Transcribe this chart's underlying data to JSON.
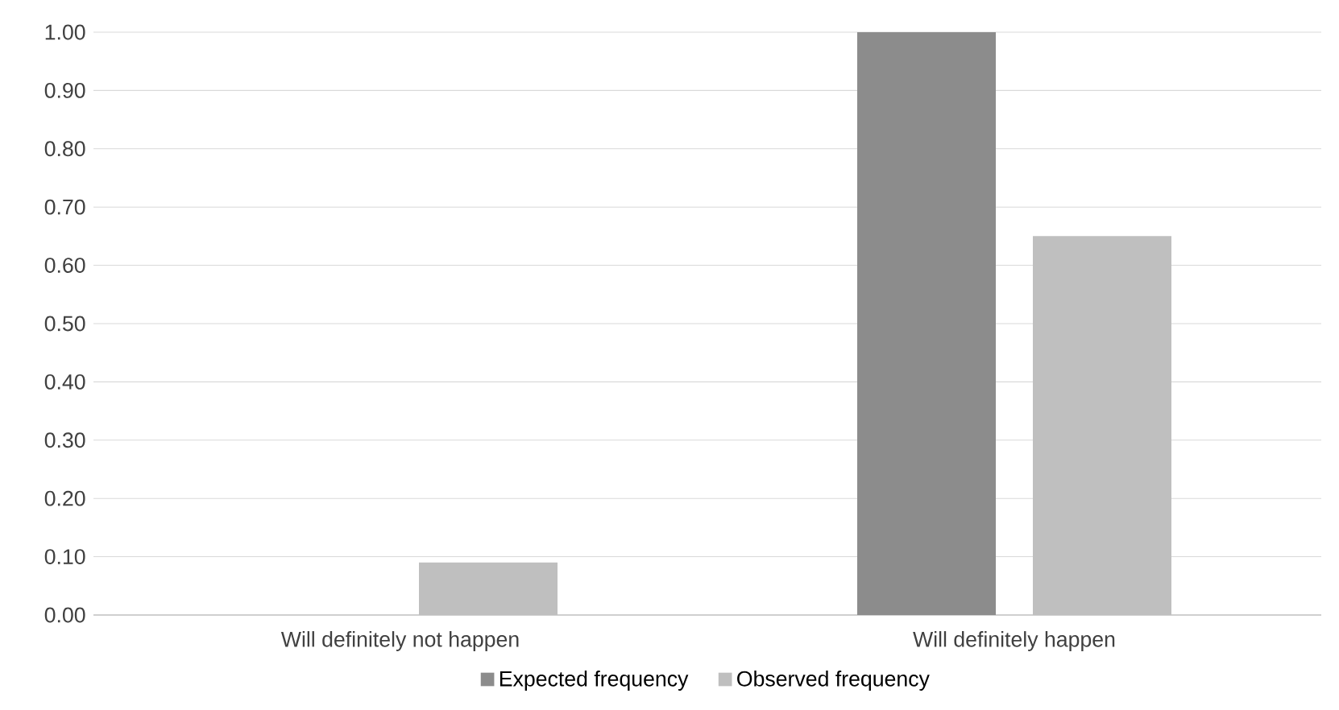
{
  "chart_data": {
    "type": "bar",
    "categories": [
      "Will definitely not happen",
      "Will definitely happen"
    ],
    "series": [
      {
        "name": "Expected frequency",
        "color": "#8c8c8c",
        "values": [
          0,
          1.0
        ]
      },
      {
        "name": "Observed frequency",
        "color": "#bfbfbf",
        "values": [
          0.09,
          0.65
        ]
      }
    ],
    "ylim": [
      0,
      1.0
    ],
    "yticks": [
      {
        "value": 0,
        "label": "0.00"
      },
      {
        "value": 0.1,
        "label": "0.10"
      },
      {
        "value": 0.2,
        "label": "0.20"
      },
      {
        "value": 0.3,
        "label": "0.30"
      },
      {
        "value": 0.4,
        "label": "0.40"
      },
      {
        "value": 0.5,
        "label": "0.50"
      },
      {
        "value": 0.6,
        "label": "0.60"
      },
      {
        "value": 0.7,
        "label": "0.70"
      },
      {
        "value": 0.8,
        "label": "0.80"
      },
      {
        "value": 0.9,
        "label": "0.90"
      },
      {
        "value": 1.0,
        "label": "1.00"
      }
    ],
    "grid": "y",
    "legend": "bottom"
  }
}
